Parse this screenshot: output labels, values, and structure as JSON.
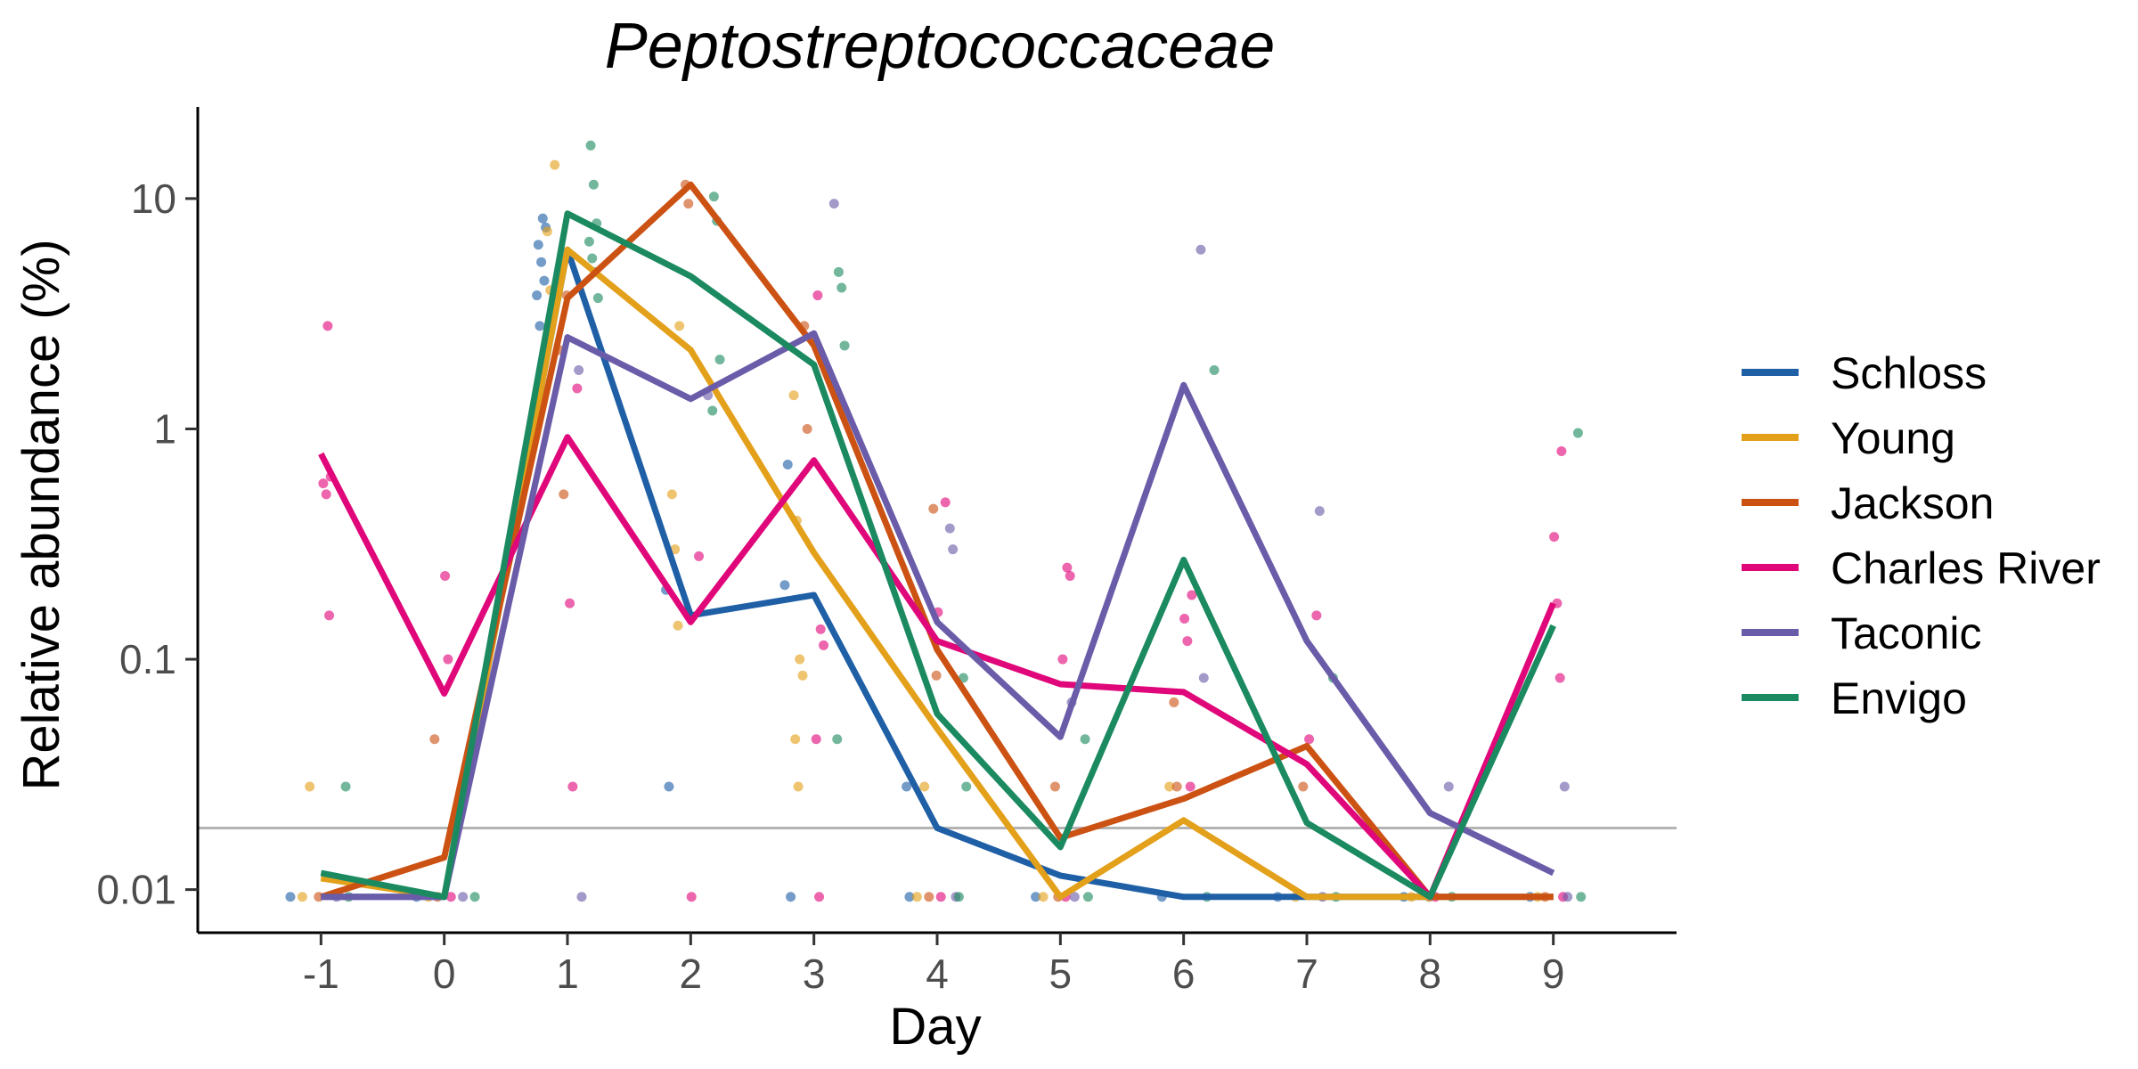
{
  "chart_data": {
    "type": "line",
    "title": "Peptostreptococcaceae",
    "xlabel": "Day",
    "ylabel": "Relative abundance (%)",
    "x_scale": "linear",
    "y_scale": "log10",
    "xlim": [
      -2,
      10
    ],
    "ylim": [
      0.0065,
      25
    ],
    "x_ticks": [
      -1,
      0,
      1,
      2,
      3,
      4,
      5,
      6,
      7,
      8,
      9
    ],
    "x_tick_labels": [
      "-1",
      "0",
      "1",
      "2",
      "3",
      "4",
      "5",
      "6",
      "7",
      "8",
      "9"
    ],
    "y_ticks": [
      0.01,
      0.1,
      1,
      10
    ],
    "y_tick_labels": [
      "0.01",
      "0.1",
      "1",
      "10"
    ],
    "detection_limit": 0.0185,
    "detection_limit_color": "#b3b3b3",
    "grid": false,
    "legend_position": "right",
    "x": [
      -1,
      0,
      1,
      2,
      3,
      4,
      5,
      6,
      7,
      8,
      9
    ],
    "series": [
      {
        "name": "Schloss",
        "color": "#1f5fa6",
        "values": [
          0.0093,
          0.0093,
          6.0,
          0.155,
          0.19,
          0.0185,
          0.0115,
          0.0093,
          0.0093,
          0.0093,
          0.0093
        ],
        "points": [
          [
            -1,
            0.0093
          ],
          [
            0,
            0.0093
          ],
          [
            1,
            8.2
          ],
          [
            1,
            7.5
          ],
          [
            1,
            6.3
          ],
          [
            1,
            5.3
          ],
          [
            1,
            4.4
          ],
          [
            1,
            3.8
          ],
          [
            1,
            2.8
          ],
          [
            2,
            0.2
          ],
          [
            2,
            0.028
          ],
          [
            3,
            0.21
          ],
          [
            3,
            0.7
          ],
          [
            3,
            0.0093
          ],
          [
            4,
            0.028
          ],
          [
            4,
            0.0093
          ],
          [
            5,
            0.0093
          ],
          [
            6,
            0.0093
          ],
          [
            7,
            0.0093
          ],
          [
            8,
            0.0093
          ],
          [
            9,
            0.0093
          ]
        ]
      },
      {
        "name": "Young",
        "color": "#e3a01a",
        "values": [
          0.0112,
          0.0093,
          6.0,
          2.2,
          0.29,
          0.05,
          0.0093,
          0.02,
          0.0093,
          0.0093,
          0.0093
        ],
        "points": [
          [
            -1,
            0.028
          ],
          [
            -1,
            0.0093
          ],
          [
            0,
            0.0093
          ],
          [
            1,
            14
          ],
          [
            1,
            7.2
          ],
          [
            1,
            4.0
          ],
          [
            1,
            3.2
          ],
          [
            2,
            2.8
          ],
          [
            2,
            0.52
          ],
          [
            2,
            0.3
          ],
          [
            2,
            0.14
          ],
          [
            3,
            1.4
          ],
          [
            3,
            0.4
          ],
          [
            3,
            0.1
          ],
          [
            3,
            0.085
          ],
          [
            3,
            0.045
          ],
          [
            3,
            0.028
          ],
          [
            4,
            0.028
          ],
          [
            4,
            0.0093
          ],
          [
            5,
            0.0093
          ],
          [
            6,
            0.028
          ],
          [
            7,
            0.0093
          ],
          [
            8,
            0.0093
          ],
          [
            9,
            0.0093
          ]
        ]
      },
      {
        "name": "Jackson",
        "color": "#cc5213",
        "values": [
          0.0093,
          0.0138,
          3.7,
          11.5,
          2.3,
          0.11,
          0.0168,
          0.0248,
          0.042,
          0.0093,
          0.0093
        ],
        "points": [
          [
            -1,
            0.0093
          ],
          [
            0,
            0.045
          ],
          [
            0,
            0.0093
          ],
          [
            1,
            0.52
          ],
          [
            1,
            3.8
          ],
          [
            1,
            2.2
          ],
          [
            2,
            11.5
          ],
          [
            2,
            9.5
          ],
          [
            3,
            2.8
          ],
          [
            3,
            1.0
          ],
          [
            4,
            0.45
          ],
          [
            4,
            0.085
          ],
          [
            4,
            0.0093
          ],
          [
            5,
            0.028
          ],
          [
            5,
            0.0093
          ],
          [
            6,
            0.065
          ],
          [
            6,
            0.028
          ],
          [
            7,
            0.028
          ],
          [
            8,
            0.0093
          ],
          [
            9,
            0.0093
          ]
        ]
      },
      {
        "name": "Charles River",
        "color": "#e0077a",
        "values": [
          0.78,
          0.071,
          0.92,
          0.145,
          0.73,
          0.12,
          0.078,
          0.072,
          0.035,
          0.0093,
          0.175
        ],
        "points": [
          [
            -1,
            2.8
          ],
          [
            -1,
            0.62
          ],
          [
            -1,
            0.58
          ],
          [
            -1,
            0.52
          ],
          [
            -1,
            0.155
          ],
          [
            0,
            0.23
          ],
          [
            0,
            0.1
          ],
          [
            0,
            0.0093
          ],
          [
            1,
            1.5
          ],
          [
            1,
            0.175
          ],
          [
            1,
            0.028
          ],
          [
            2,
            0.28
          ],
          [
            2,
            0.0093
          ],
          [
            3,
            3.8
          ],
          [
            3,
            0.135
          ],
          [
            3,
            0.115
          ],
          [
            3,
            0.045
          ],
          [
            3,
            0.0093
          ],
          [
            4,
            0.48
          ],
          [
            4,
            0.16
          ],
          [
            4,
            0.0093
          ],
          [
            5,
            0.25
          ],
          [
            5,
            0.23
          ],
          [
            5,
            0.1
          ],
          [
            5,
            0.0093
          ],
          [
            6,
            0.19
          ],
          [
            6,
            0.15
          ],
          [
            6,
            0.12
          ],
          [
            6,
            0.028
          ],
          [
            7,
            0.155
          ],
          [
            7,
            0.045
          ],
          [
            8,
            0.0093
          ],
          [
            9,
            0.8
          ],
          [
            9,
            0.34
          ],
          [
            9,
            0.175
          ],
          [
            9,
            0.083
          ],
          [
            9,
            0.0093
          ]
        ]
      },
      {
        "name": "Taconic",
        "color": "#6a5ca8",
        "values": [
          0.0093,
          0.0093,
          2.5,
          1.35,
          2.6,
          0.145,
          0.046,
          1.55,
          0.12,
          0.0215,
          0.0118
        ],
        "points": [
          [
            -1,
            0.0093
          ],
          [
            0,
            0.0093
          ],
          [
            1,
            1.8
          ],
          [
            1,
            0.0093
          ],
          [
            2,
            1.4
          ],
          [
            3,
            9.5
          ],
          [
            4,
            0.37
          ],
          [
            4,
            0.3
          ],
          [
            4,
            0.0093
          ],
          [
            5,
            0.065
          ],
          [
            5,
            0.0093
          ],
          [
            6,
            6.0
          ],
          [
            6,
            0.083
          ],
          [
            7,
            0.44
          ],
          [
            7,
            0.0093
          ],
          [
            8,
            0.028
          ],
          [
            9,
            0.028
          ],
          [
            9,
            0.0093
          ]
        ]
      },
      {
        "name": "Envigo",
        "color": "#1b8a60",
        "values": [
          0.0118,
          0.0093,
          8.6,
          4.6,
          1.9,
          0.058,
          0.0153,
          0.27,
          0.0195,
          0.0093,
          0.14
        ],
        "points": [
          [
            -1,
            0.028
          ],
          [
            -1,
            0.0093
          ],
          [
            0,
            0.0093
          ],
          [
            1,
            17
          ],
          [
            1,
            11.5
          ],
          [
            1,
            7.8
          ],
          [
            1,
            6.5
          ],
          [
            1,
            5.5
          ],
          [
            1,
            4.8
          ],
          [
            1,
            3.7
          ],
          [
            2,
            10.2
          ],
          [
            2,
            8.0
          ],
          [
            2,
            2.0
          ],
          [
            2,
            1.2
          ],
          [
            3,
            4.8
          ],
          [
            3,
            4.1
          ],
          [
            3,
            2.3
          ],
          [
            3,
            0.045
          ],
          [
            4,
            0.083
          ],
          [
            4,
            0.028
          ],
          [
            4,
            0.0093
          ],
          [
            5,
            0.045
          ],
          [
            5,
            0.0093
          ],
          [
            6,
            1.8
          ],
          [
            6,
            0.0093
          ],
          [
            7,
            0.083
          ],
          [
            7,
            0.0093
          ],
          [
            8,
            0.0093
          ],
          [
            9,
            0.96
          ],
          [
            9,
            0.0093
          ]
        ]
      }
    ]
  }
}
